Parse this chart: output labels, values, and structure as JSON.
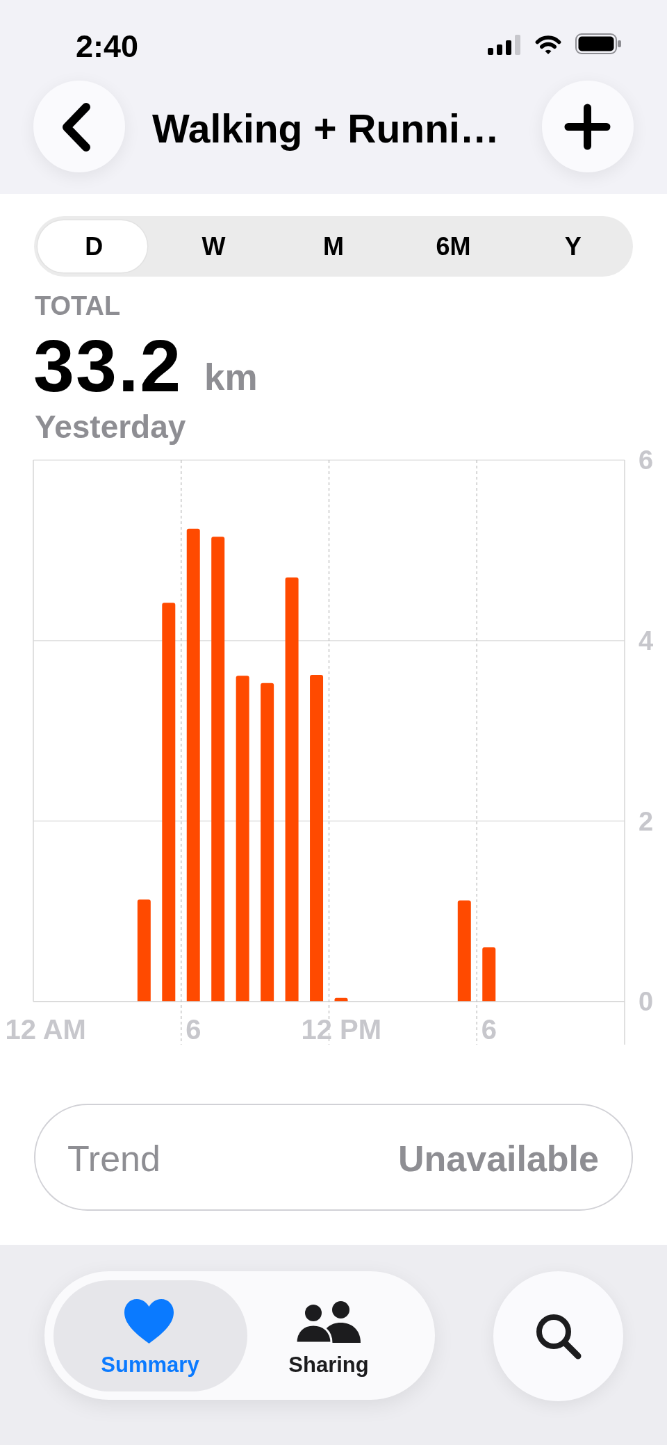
{
  "chart_data": {
    "type": "bar",
    "title": "Walking + Runni…",
    "annotations": [
      "2:40",
      "D",
      "W",
      "M",
      "6M",
      "Y",
      "TOTAL",
      "33.2",
      "km",
      "Yesterday",
      "Trend",
      "Unavailable",
      "Summary",
      "Sharing"
    ],
    "categories": [
      "12 AM",
      null,
      null,
      null,
      null,
      null,
      "6",
      null,
      null,
      null,
      null,
      null,
      "12 PM",
      null,
      null,
      null,
      null,
      null,
      "6",
      null,
      null,
      null,
      null,
      null
    ],
    "values": [
      null,
      null,
      null,
      null,
      1.13,
      4.42,
      5.24,
      5.15,
      3.61,
      3.53,
      4.7,
      3.62,
      0.04,
      null,
      null,
      null,
      null,
      1.12,
      0.6,
      null,
      null,
      null,
      null,
      null
    ],
    "color": "#ff4a00",
    "ylim": [
      0,
      6
    ],
    "yticks": [
      0,
      2,
      4,
      6
    ],
    "grid": true
  }
}
